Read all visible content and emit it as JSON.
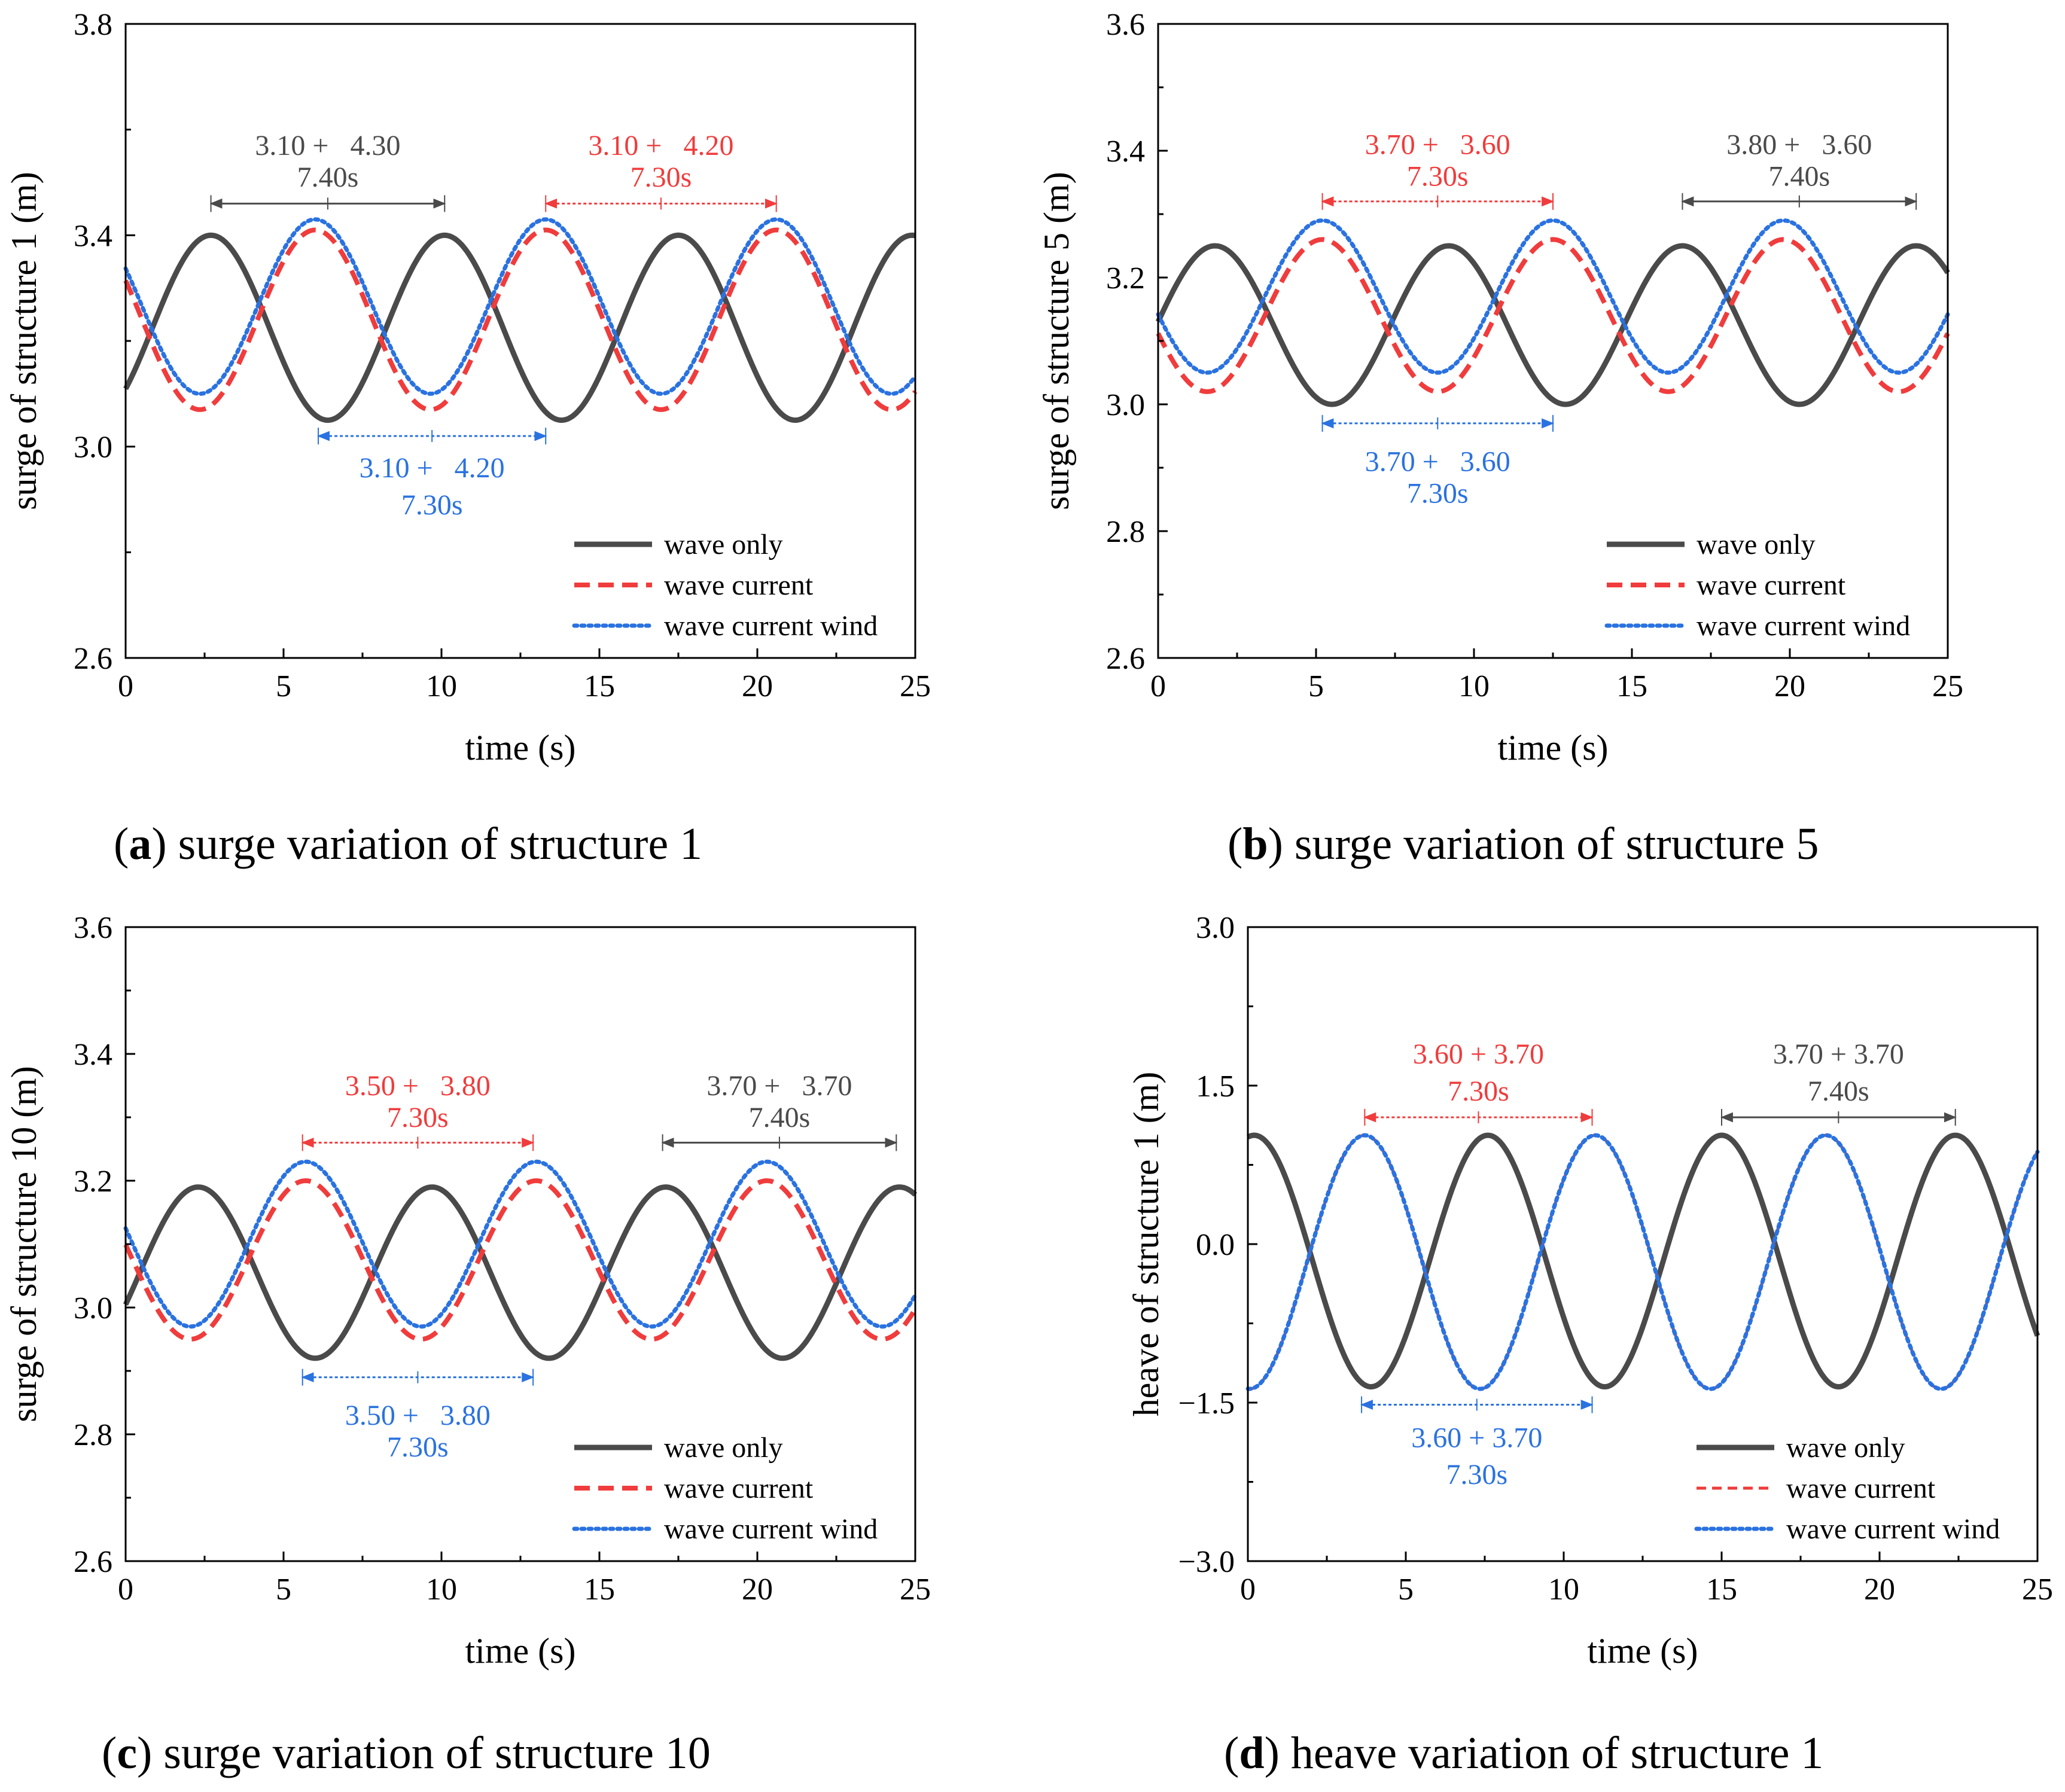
{
  "colors": {
    "wave_only": "#4a4a4a",
    "wave_current": "#f03c3c",
    "wave_current_wind": "#2a72e0",
    "axis": "#000000"
  },
  "legend_labels": [
    "wave only",
    "wave current",
    "wave current wind"
  ],
  "captions": [
    {
      "letter": "a",
      "text": "surge variation of structure 1"
    },
    {
      "letter": "b",
      "text": "surge variation of structure 5"
    },
    {
      "letter": "c",
      "text": "surge variation of structure 10"
    },
    {
      "letter": "d",
      "text": "heave variation of structure 1"
    }
  ],
  "chart_data": [
    {
      "type": "line",
      "xlabel": "time (s)",
      "ylabel": "surge of structure 1 (m)",
      "xlim": [
        0,
        25
      ],
      "ylim": [
        2.6,
        3.8
      ],
      "xticks": [
        "0",
        "5",
        "10",
        "15",
        "20",
        "25"
      ],
      "yticks": [
        "2.6",
        "3.0",
        "3.4",
        "3.8"
      ],
      "legend_position": "bottom-right",
      "series": [
        {
          "name": "wave only",
          "style": "solid",
          "period": 7.4,
          "peak_t": 2.7,
          "max": 3.4,
          "min": 3.05
        },
        {
          "name": "wave current",
          "style": "dashed",
          "period": 7.3,
          "peak_t": 6.0,
          "max": 3.41,
          "min": 3.07
        },
        {
          "name": "wave current wind",
          "style": "dotted",
          "period": 7.3,
          "peak_t": 6.0,
          "max": 3.43,
          "min": 3.1
        }
      ],
      "annotations": [
        {
          "line1": "3.10 +   4.30",
          "line2": "7.40s",
          "x_start": 2.7,
          "x_end": 10.1,
          "y_arrow": 3.46,
          "y_text1": 3.57,
          "y_text2": 3.51,
          "color": "black",
          "position": "above"
        },
        {
          "line1": "3.10 +   4.20",
          "line2": "7.30s",
          "x_start": 13.3,
          "x_end": 20.6,
          "y_arrow": 3.46,
          "y_text1": 3.57,
          "y_text2": 3.51,
          "color": "red",
          "position": "above"
        },
        {
          "line1": "3.10 +   4.20",
          "line2": "7.30s",
          "x_start": 6.1,
          "x_end": 13.3,
          "y_arrow": 3.02,
          "y_text1": 2.96,
          "y_text2": 2.89,
          "color": "blue",
          "position": "below"
        }
      ]
    },
    {
      "type": "line",
      "xlabel": "time (s)",
      "ylabel": "surge of structure 5 (m)",
      "xlim": [
        0,
        25
      ],
      "ylim": [
        2.6,
        3.6
      ],
      "xticks": [
        "0",
        "5",
        "10",
        "15",
        "20",
        "25"
      ],
      "yticks": [
        "2.6",
        "2.8",
        "3.0",
        "3.2",
        "3.4",
        "3.6"
      ],
      "legend_position": "bottom-right",
      "series": [
        {
          "name": "wave only",
          "style": "solid",
          "period": 7.4,
          "peak_t": 1.8,
          "max": 3.25,
          "min": 3.0
        },
        {
          "name": "wave current",
          "style": "dashed",
          "period": 7.3,
          "peak_t": 5.2,
          "max": 3.26,
          "min": 3.02
        },
        {
          "name": "wave current wind",
          "style": "dotted",
          "period": 7.3,
          "peak_t": 5.2,
          "max": 3.29,
          "min": 3.05
        }
      ],
      "annotations": [
        {
          "line1": "3.70 +   3.60",
          "line2": "7.30s",
          "x_start": 5.2,
          "x_end": 12.5,
          "y_arrow": 3.32,
          "y_text1": 3.41,
          "y_text2": 3.36,
          "color": "red",
          "position": "above"
        },
        {
          "line1": "3.80 +   3.60",
          "line2": "7.40s",
          "x_start": 16.6,
          "x_end": 24.0,
          "y_arrow": 3.32,
          "y_text1": 3.41,
          "y_text2": 3.36,
          "color": "black",
          "position": "above"
        },
        {
          "line1": "3.70 +   3.60",
          "line2": "7.30s",
          "x_start": 5.2,
          "x_end": 12.5,
          "y_arrow": 2.97,
          "y_text1": 2.91,
          "y_text2": 2.86,
          "color": "blue",
          "position": "below"
        }
      ]
    },
    {
      "type": "line",
      "xlabel": "time (s)",
      "ylabel": "surge of structure 10 (m)",
      "xlim": [
        0,
        25
      ],
      "ylim": [
        2.6,
        3.6
      ],
      "xticks": [
        "0",
        "5",
        "10",
        "15",
        "20",
        "25"
      ],
      "yticks": [
        "2.6",
        "2.8",
        "3.0",
        "3.2",
        "3.4",
        "3.6"
      ],
      "legend_position": "bottom-right",
      "series": [
        {
          "name": "wave only",
          "style": "solid",
          "period": 7.4,
          "peak_t": 2.3,
          "max": 3.19,
          "min": 2.92
        },
        {
          "name": "wave current",
          "style": "dashed",
          "period": 7.3,
          "peak_t": 5.7,
          "max": 3.2,
          "min": 2.95
        },
        {
          "name": "wave current wind",
          "style": "dotted",
          "period": 7.3,
          "peak_t": 5.7,
          "max": 3.23,
          "min": 2.97
        }
      ],
      "annotations": [
        {
          "line1": "3.50 +   3.80",
          "line2": "7.30s",
          "x_start": 5.6,
          "x_end": 12.9,
          "y_arrow": 3.26,
          "y_text1": 3.35,
          "y_text2": 3.3,
          "color": "red",
          "position": "above"
        },
        {
          "line1": "3.70 +   3.70",
          "line2": "7.40s",
          "x_start": 17.0,
          "x_end": 24.4,
          "y_arrow": 3.26,
          "y_text1": 3.35,
          "y_text2": 3.3,
          "color": "black",
          "position": "above"
        },
        {
          "line1": "3.50 +   3.80",
          "line2": "7.30s",
          "x_start": 5.6,
          "x_end": 12.9,
          "y_arrow": 2.89,
          "y_text1": 2.83,
          "y_text2": 2.78,
          "color": "blue",
          "position": "below"
        }
      ]
    },
    {
      "type": "line",
      "xlabel": "time (s)",
      "ylabel": "heave of structure 1 (m)",
      "xlim": [
        0,
        25
      ],
      "ylim": [
        -3.0,
        3.0
      ],
      "xticks": [
        "0",
        "5",
        "10",
        "15",
        "20",
        "25"
      ],
      "yticks": [
        "−3.0",
        "−1.5",
        "0.0",
        "1.5",
        "3.0"
      ],
      "legend_position": "bottom-right",
      "series": [
        {
          "name": "wave only",
          "style": "solid",
          "period": 7.4,
          "peak_t": 0.2,
          "max": 1.03,
          "min": -1.35
        },
        {
          "name": "wave current",
          "style": "thin-dashed",
          "period": 7.3,
          "peak_t": 3.7,
          "max": 1.03,
          "min": -1.37
        },
        {
          "name": "wave current wind",
          "style": "dotted",
          "period": 7.3,
          "peak_t": 3.7,
          "max": 1.03,
          "min": -1.37
        }
      ],
      "annotations": [
        {
          "line1": "3.60 + 3.70",
          "line2": "7.30s",
          "x_start": 3.7,
          "x_end": 10.9,
          "y_arrow": 1.2,
          "y_text1": 1.8,
          "y_text2": 1.45,
          "color": "red",
          "position": "above"
        },
        {
          "line1": "3.70 + 3.70",
          "line2": "7.40s",
          "x_start": 15.0,
          "x_end": 22.4,
          "y_arrow": 1.2,
          "y_text1": 1.8,
          "y_text2": 1.45,
          "color": "black",
          "position": "above"
        },
        {
          "line1": "3.60 + 3.70",
          "line2": "7.30s",
          "x_start": 3.6,
          "x_end": 10.9,
          "y_arrow": -1.52,
          "y_text1": -1.83,
          "y_text2": -2.18,
          "color": "blue",
          "position": "below"
        }
      ]
    }
  ]
}
